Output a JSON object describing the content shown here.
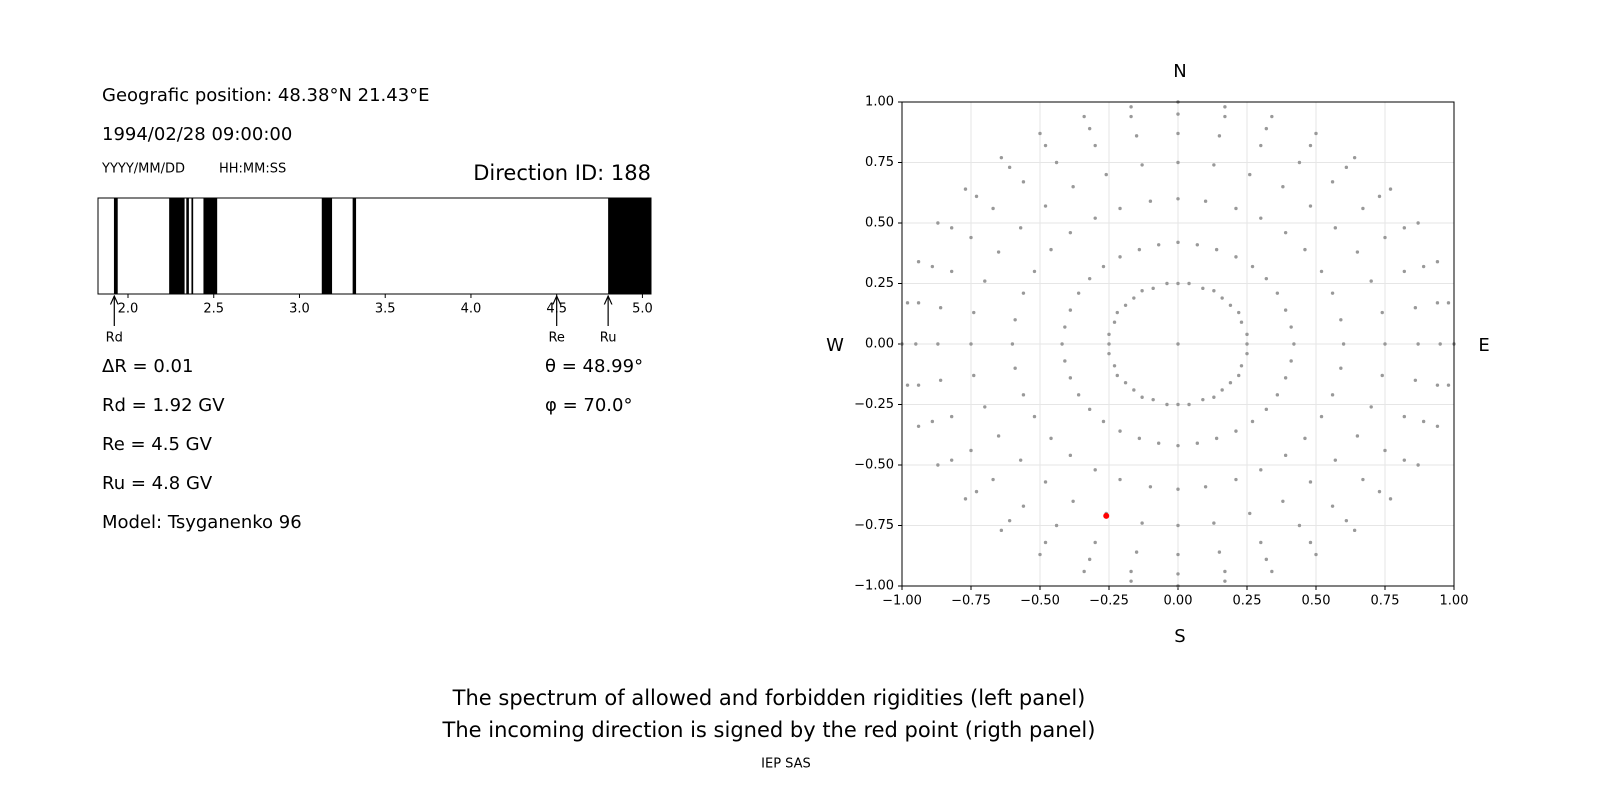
{
  "chart_data": [
    {
      "type": "spectrum",
      "position": "Geografic position: 48.38°N 21.43°E",
      "datetime": "1994/02/28 09:00:00",
      "date_format": "YYYY/MM/DD",
      "time_format": "HH:MM:SS",
      "direction": "Direction ID: 188",
      "xlim": [
        1.825,
        5.05
      ],
      "xticks": [
        {
          "value": 2,
          "label": "2.0"
        },
        2.5,
        {
          "value": 3,
          "label": "3.0"
        },
        3.5,
        {
          "value": 4,
          "label": "4.0"
        },
        4.5,
        {
          "value": 5,
          "label": "5.0"
        }
      ],
      "bands": [
        [
          1.918,
          1.94
        ],
        [
          2.24,
          2.33
        ],
        [
          2.34,
          2.355
        ],
        [
          2.37,
          2.38
        ],
        [
          2.44,
          2.52
        ],
        [
          3.13,
          3.19
        ],
        [
          3.31,
          3.33
        ],
        [
          4.8,
          5.05
        ]
      ],
      "color": "#000000",
      "markers": [
        {
          "label": "Rd",
          "value": 1.92
        },
        {
          "label": "Re",
          "value": 4.5
        },
        {
          "label": "Ru",
          "value": 4.8
        }
      ],
      "info": [
        "ΔR = 0.01",
        "Rd = 1.92 GV",
        "Re = 4.5 GV",
        "Ru = 4.8 GV",
        "Model: Tsyganenko 96"
      ],
      "angles": [
        "θ = 48.99°",
        "φ = 70.0°"
      ]
    },
    {
      "type": "scatter",
      "annotations": {
        "north": "N",
        "south": "S",
        "west": "W",
        "east": "E"
      },
      "xlim": [
        -1,
        1
      ],
      "ylim": [
        -1,
        1
      ],
      "grid": true,
      "xticks": [
        {
          "value": -1,
          "label": "−1.00"
        },
        {
          "value": -0.75,
          "label": "−0.75"
        },
        {
          "value": -0.5,
          "label": "−0.50"
        },
        {
          "value": -0.25,
          "label": "−0.25"
        },
        {
          "value": 0,
          "label": "0.00"
        },
        {
          "value": 0.25,
          "label": "0.25"
        },
        {
          "value": 0.5,
          "label": "0.50"
        },
        {
          "value": 0.75,
          "label": "0.75"
        },
        {
          "value": 1,
          "label": "1.00"
        }
      ],
      "yticks": [
        {
          "value": -1,
          "label": "−1.00"
        },
        {
          "value": -0.75,
          "label": "−0.75"
        },
        {
          "value": -0.5,
          "label": "−0.50"
        },
        {
          "value": -0.25,
          "label": "−0.25"
        },
        {
          "value": 0,
          "label": "0.00"
        },
        {
          "value": 0.25,
          "label": "0.25"
        },
        {
          "value": 0.5,
          "label": "0.50"
        },
        {
          "value": 0.75,
          "label": "0.75"
        },
        {
          "value": 1,
          "label": "1.00"
        }
      ],
      "series": [
        {
          "color": "#999999",
          "x": [
            0.25,
            0.25,
            0.23,
            0.22,
            0.19,
            0.16,
            0.13,
            0.09,
            0.04,
            0,
            -0.04,
            -0.09,
            -0.13,
            -0.16,
            -0.19,
            -0.22,
            -0.23,
            -0.25,
            -0.25,
            -0.25,
            -0.23,
            -0.22,
            -0.19,
            -0.16,
            -0.13,
            -0.09,
            -0.04,
            0,
            0.04,
            0.09,
            0.13,
            0.16,
            0.19,
            0.22,
            0.23,
            0.25,
            0.42,
            0.41,
            0.39,
            0.36,
            0.32,
            0.27,
            0.21,
            0.14,
            0.07,
            0,
            -0.07,
            -0.14,
            -0.21,
            -0.27,
            -0.32,
            -0.36,
            -0.39,
            -0.41,
            -0.42,
            -0.41,
            -0.39,
            -0.36,
            -0.32,
            -0.27,
            -0.21,
            -0.14,
            -0.07,
            0,
            0.07,
            0.14,
            0.21,
            0.27,
            0.32,
            0.36,
            0.39,
            0.41,
            0.6,
            0.59,
            0.56,
            0.52,
            0.46,
            0.39,
            0.3,
            0.21,
            0.1,
            0,
            -0.1,
            -0.21,
            -0.3,
            -0.39,
            -0.46,
            -0.52,
            -0.56,
            -0.59,
            -0.6,
            -0.59,
            -0.56,
            -0.52,
            -0.46,
            -0.39,
            -0.3,
            -0.21,
            -0.1,
            0,
            0.1,
            0.21,
            0.3,
            0.39,
            0.46,
            0.52,
            0.56,
            0.59,
            0.75,
            0.74,
            0.7,
            0.65,
            0.57,
            0.48,
            0.38,
            0.26,
            0.13,
            0,
            -0.13,
            -0.26,
            -0.38,
            -0.48,
            -0.57,
            -0.65,
            -0.7,
            -0.74,
            -0.75,
            -0.74,
            -0.7,
            -0.65,
            -0.57,
            -0.48,
            -0.38,
            -0.26,
            -0.13,
            0,
            0.13,
            0.26,
            0.38,
            0.48,
            0.57,
            0.65,
            0.7,
            0.74,
            0.87,
            0.86,
            0.82,
            0.75,
            0.67,
            0.56,
            0.44,
            0.3,
            0.15,
            0,
            -0.15,
            -0.3,
            -0.44,
            -0.56,
            -0.67,
            -0.75,
            -0.82,
            -0.86,
            -0.87,
            -0.86,
            -0.82,
            -0.75,
            -0.67,
            -0.56,
            -0.44,
            -0.3,
            -0.15,
            0,
            0.15,
            0.3,
            0.44,
            0.56,
            0.67,
            0.75,
            0.82,
            0.86,
            0.95,
            0.94,
            0.89,
            0.82,
            0.73,
            0.61,
            0.48,
            0.32,
            0.17,
            0,
            -0.17,
            -0.32,
            -0.48,
            -0.61,
            -0.73,
            -0.82,
            -0.89,
            -0.94,
            -0.95,
            -0.94,
            -0.89,
            -0.82,
            -0.73,
            -0.61,
            -0.48,
            -0.32,
            -0.17,
            0,
            0.17,
            0.32,
            0.48,
            0.61,
            0.73,
            0.82,
            0.89,
            0.94,
            1,
            0.98,
            0.94,
            0.87,
            0.77,
            0.64,
            0.5,
            0.34,
            0.17,
            0,
            -0.17,
            -0.34,
            -0.5,
            -0.64,
            -0.77,
            -0.87,
            -0.94,
            -0.98,
            -1,
            -0.98,
            -0.94,
            -0.87,
            -0.77,
            -0.64,
            -0.5,
            -0.34,
            -0.17,
            0,
            0.17,
            0.34,
            0.5,
            0.64,
            0.77,
            0.87,
            0.94,
            0.98,
            0
          ],
          "values": [
            0,
            0.04,
            0.09,
            0.13,
            0.16,
            0.19,
            0.22,
            0.23,
            0.25,
            0.25,
            0.25,
            0.23,
            0.22,
            0.19,
            0.16,
            0.13,
            0.09,
            0.04,
            0,
            -0.04,
            -0.09,
            -0.13,
            -0.16,
            -0.19,
            -0.22,
            -0.23,
            -0.25,
            -0.25,
            -0.25,
            -0.23,
            -0.22,
            -0.19,
            -0.16,
            -0.13,
            -0.09,
            -0.04,
            0,
            0.07,
            0.14,
            0.21,
            0.27,
            0.32,
            0.36,
            0.39,
            0.41,
            0.42,
            0.41,
            0.39,
            0.36,
            0.32,
            0.27,
            0.21,
            0.14,
            0.07,
            0,
            -0.07,
            -0.14,
            -0.21,
            -0.27,
            -0.32,
            -0.36,
            -0.39,
            -0.41,
            -0.42,
            -0.41,
            -0.39,
            -0.36,
            -0.32,
            -0.27,
            -0.21,
            -0.14,
            -0.07,
            0,
            0.1,
            0.21,
            0.3,
            0.39,
            0.46,
            0.52,
            0.56,
            0.59,
            0.6,
            0.59,
            0.56,
            0.52,
            0.46,
            0.39,
            0.3,
            0.21,
            0.1,
            0,
            -0.1,
            -0.21,
            -0.3,
            -0.39,
            -0.46,
            -0.52,
            -0.56,
            -0.59,
            -0.6,
            -0.59,
            -0.56,
            -0.52,
            -0.46,
            -0.39,
            -0.3,
            -0.21,
            -0.1,
            0,
            0.13,
            0.26,
            0.38,
            0.48,
            0.57,
            0.65,
            0.7,
            0.74,
            0.75,
            0.74,
            0.7,
            0.65,
            0.57,
            0.48,
            0.38,
            0.26,
            0.13,
            0,
            -0.13,
            -0.26,
            -0.38,
            -0.48,
            -0.57,
            -0.65,
            -0.7,
            -0.74,
            -0.75,
            -0.74,
            -0.7,
            -0.65,
            -0.57,
            -0.48,
            -0.38,
            -0.26,
            -0.13,
            0,
            0.15,
            0.3,
            0.44,
            0.56,
            0.67,
            0.75,
            0.82,
            0.86,
            0.87,
            0.86,
            0.82,
            0.75,
            0.67,
            0.56,
            0.44,
            0.3,
            0.15,
            0,
            -0.15,
            -0.3,
            -0.44,
            -0.56,
            -0.67,
            -0.75,
            -0.82,
            -0.86,
            -0.87,
            -0.86,
            -0.82,
            -0.75,
            -0.67,
            -0.56,
            -0.44,
            -0.3,
            -0.15,
            0,
            0.17,
            0.32,
            0.48,
            0.61,
            0.73,
            0.82,
            0.89,
            0.94,
            0.95,
            0.94,
            0.89,
            0.82,
            0.73,
            0.61,
            0.48,
            0.32,
            0.17,
            0,
            -0.17,
            -0.32,
            -0.48,
            -0.61,
            -0.73,
            -0.82,
            -0.89,
            -0.94,
            -0.95,
            -0.94,
            -0.89,
            -0.82,
            -0.73,
            -0.61,
            -0.48,
            -0.32,
            -0.17,
            0,
            0.17,
            0.34,
            0.5,
            0.64,
            0.77,
            0.87,
            0.94,
            0.98,
            1,
            0.98,
            0.94,
            0.87,
            0.77,
            0.64,
            0.5,
            0.34,
            0.17,
            0,
            -0.17,
            -0.34,
            -0.5,
            -0.64,
            -0.77,
            -0.87,
            -0.94,
            -0.98,
            -1,
            -0.98,
            -0.94,
            -0.87,
            -0.77,
            -0.64,
            -0.5,
            -0.34,
            -0.17,
            0
          ]
        },
        {
          "color": "#ff0000",
          "x": [
            -0.26
          ],
          "values": [
            -0.71
          ]
        }
      ]
    }
  ],
  "caption": [
    "The spectrum of allowed and forbidden rigidities (left panel)",
    "The incoming direction is signed by the red point (rigth panel)"
  ],
  "footer": "IEP SAS"
}
